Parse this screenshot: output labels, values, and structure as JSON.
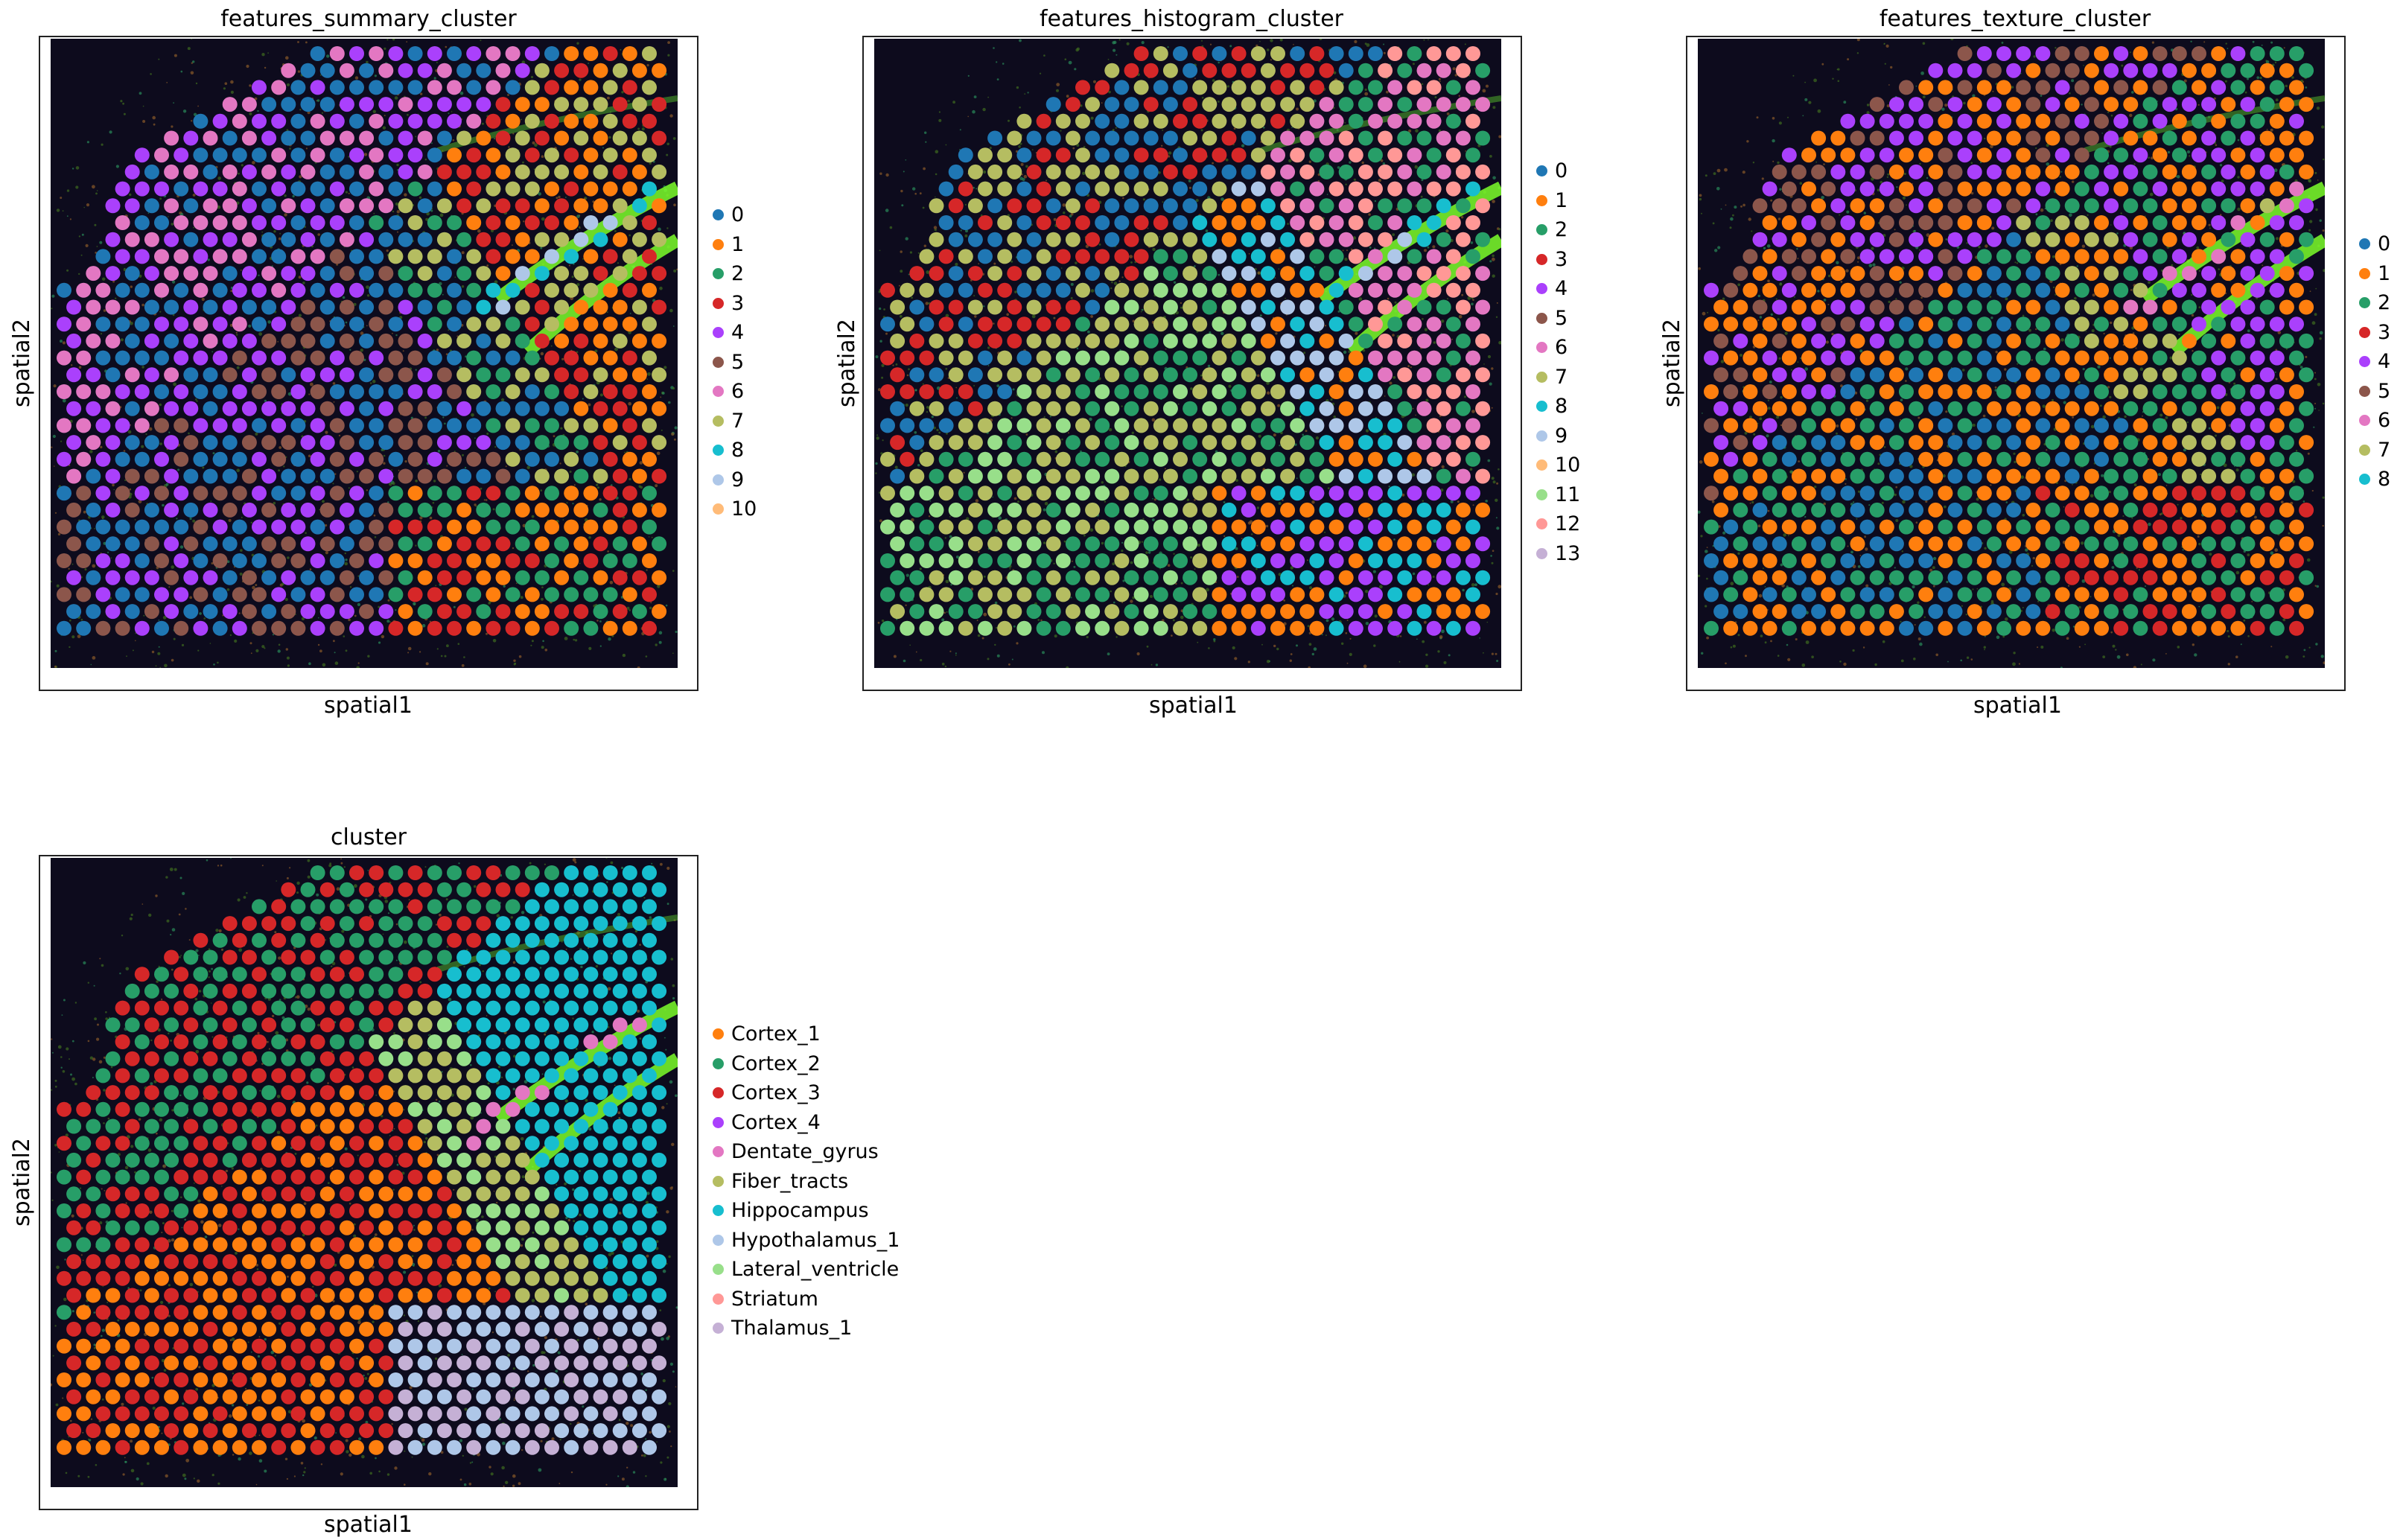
{
  "panels": [
    {
      "id": "features_summary",
      "title": "features_summary_cluster",
      "xlabel": "spatial1",
      "ylabel": "spatial2",
      "legend": [
        "0",
        "1",
        "2",
        "3",
        "4",
        "5",
        "6",
        "7",
        "8",
        "9",
        "10"
      ],
      "region_map": {
        "A": [
          "0",
          "6",
          "4"
        ],
        "B": [
          "5",
          "4",
          "0"
        ],
        "C": [
          "2",
          "0",
          "7"
        ],
        "D": [
          "1",
          "3",
          "7"
        ],
        "E": [
          "2",
          "1",
          "3"
        ]
      },
      "band_color": "3",
      "band_spot_colors": [
        "8",
        "9"
      ]
    },
    {
      "id": "features_histogram",
      "title": "features_histogram_cluster",
      "xlabel": "spatial1",
      "ylabel": "spatial2",
      "legend": [
        "0",
        "1",
        "2",
        "3",
        "4",
        "5",
        "6",
        "7",
        "8",
        "9",
        "10",
        "11",
        "12",
        "13"
      ],
      "region_map": {
        "A": [
          "7",
          "3",
          "0"
        ],
        "B": [
          "7",
          "2",
          "11"
        ],
        "C": [
          "1",
          "8",
          "9"
        ],
        "D": [
          "2",
          "6",
          "12"
        ],
        "E": [
          "1",
          "4",
          "8"
        ]
      },
      "band_color": "7",
      "band_spot_colors": [
        "9",
        "8"
      ]
    },
    {
      "id": "features_texture",
      "title": "features_texture_cluster",
      "xlabel": "spatial1",
      "ylabel": "spatial2",
      "legend": [
        "0",
        "1",
        "2",
        "3",
        "4",
        "5",
        "6",
        "7",
        "8"
      ],
      "region_map": {
        "A": [
          "5",
          "1",
          "4"
        ],
        "B": [
          "0",
          "1",
          "2"
        ],
        "C": [
          "2",
          "1",
          "7"
        ],
        "D": [
          "4",
          "2",
          "1"
        ],
        "E": [
          "3",
          "2",
          "1"
        ]
      },
      "band_color": "7",
      "band_spot_colors": [
        "6",
        "7"
      ]
    },
    {
      "id": "cluster",
      "title": "cluster",
      "xlabel": "spatial1",
      "ylabel": "spatial2",
      "legend": [
        "Cortex_1",
        "Cortex_2",
        "Cortex_3",
        "Cortex_4",
        "Dentate_gyrus",
        "Fiber_tracts",
        "Hippocampus",
        "Hypothalamus_1",
        "Lateral_ventricle",
        "Striatum",
        "Thalamus_1"
      ],
      "region_map": {
        "A": [
          "Cortex_2",
          "Cortex_3"
        ],
        "B": [
          "Cortex_3",
          "Cortex_1"
        ],
        "C": [
          "Fiber_tracts",
          "Lateral_ventricle"
        ],
        "D": [
          "Hippocampus"
        ],
        "E": [
          "Thalamus_1",
          "Hypothalamus_1"
        ]
      },
      "band_color": "Fiber_tracts",
      "band_spot_colors": [
        "Dentate_gyrus"
      ]
    }
  ],
  "chart_data": [
    {
      "type": "scatter",
      "title": "features_summary_cluster",
      "xlabel": "spatial1",
      "ylabel": "spatial2",
      "legend_position": "right",
      "grid": false,
      "categories": [
        "0",
        "1",
        "2",
        "3",
        "4",
        "5",
        "6",
        "7",
        "8",
        "9",
        "10"
      ]
    },
    {
      "type": "scatter",
      "title": "features_histogram_cluster",
      "xlabel": "spatial1",
      "ylabel": "spatial2",
      "legend_position": "right",
      "grid": false,
      "categories": [
        "0",
        "1",
        "2",
        "3",
        "4",
        "5",
        "6",
        "7",
        "8",
        "9",
        "10",
        "11",
        "12",
        "13"
      ]
    },
    {
      "type": "scatter",
      "title": "features_texture_cluster",
      "xlabel": "spatial1",
      "ylabel": "spatial2",
      "legend_position": "right",
      "grid": false,
      "categories": [
        "0",
        "1",
        "2",
        "3",
        "4",
        "5",
        "6",
        "7",
        "8"
      ]
    },
    {
      "type": "scatter",
      "title": "cluster",
      "xlabel": "spatial1",
      "ylabel": "spatial2",
      "legend_position": "right",
      "grid": false,
      "categories": [
        "Cortex_1",
        "Cortex_2",
        "Cortex_3",
        "Cortex_4",
        "Dentate_gyrus",
        "Fiber_tracts",
        "Hippocampus",
        "Hypothalamus_1",
        "Lateral_ventricle",
        "Striatum",
        "Thalamus_1"
      ]
    }
  ],
  "palettes": {
    "numeric": [
      "#1f77b4",
      "#ff7f0e",
      "#279e68",
      "#d62728",
      "#aa40fc",
      "#8c564b",
      "#e377c2",
      "#b5bd61",
      "#17becf",
      "#aec7e8",
      "#ffbb78",
      "#98df8a",
      "#ff9896",
      "#c5b0d5"
    ],
    "named": {
      "Cortex_1": "#ff7f0e",
      "Cortex_2": "#279e68",
      "Cortex_3": "#d62728",
      "Cortex_4": "#aa40fc",
      "Dentate_gyrus": "#e377c2",
      "Fiber_tracts": "#b5bd61",
      "Hippocampus": "#17becf",
      "Hypothalamus_1": "#aec7e8",
      "Lateral_ventricle": "#98df8a",
      "Striatum": "#ff9896",
      "Thalamus_1": "#c5b0d5"
    },
    "tissue_background": "#0d0b1d",
    "band_glow": "#7cff2a"
  }
}
